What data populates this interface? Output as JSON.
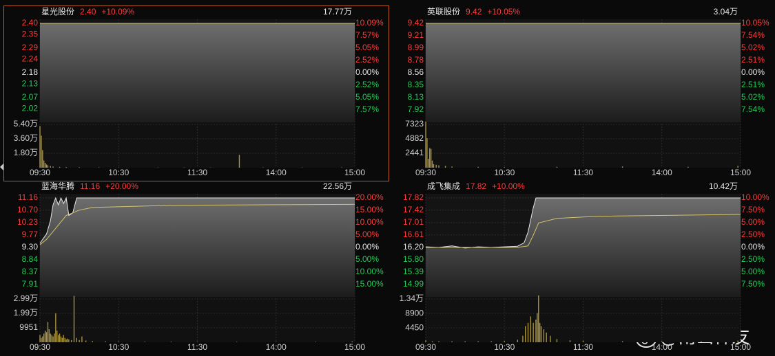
{
  "colors": {
    "up": "#ff3b3b",
    "down": "#22cc55",
    "flat": "#e6e6e6",
    "name": "#e6e6e6",
    "price_line": "#e8e8e8",
    "avg_line": "#d6c46a",
    "volume": "#a8923a"
  },
  "watermark": "@南山禅友",
  "chart_data": [
    {
      "type": "intraday",
      "name": "星光股份",
      "price_text": "2.40",
      "change_text": "+10.09%",
      "total_volume_text": "17.77万",
      "xlim": [
        0,
        240
      ],
      "xticks": [
        {
          "value": 0,
          "label": "09:30"
        },
        {
          "value": 60,
          "label": "10:30"
        },
        {
          "value": 120,
          "label": "11:30"
        },
        {
          "value": 180,
          "label": "14:00"
        },
        {
          "value": 240,
          "label": "15:00"
        }
      ],
      "ylim": [
        1.96,
        2.4
      ],
      "yticks": [
        {
          "value": 2.4,
          "label": "2.40"
        },
        2.35,
        2.29,
        2.24,
        2.18,
        2.13,
        2.07,
        2.02
      ],
      "y2lim": [
        -10.09,
        10.09
      ],
      "y2ticks": [
        {
          "value": 10.09,
          "label": "10.09%"
        },
        {
          "value": 7.57,
          "label": "7.57%"
        },
        {
          "value": 5.05,
          "label": "5.05%"
        },
        {
          "value": 2.52,
          "label": "2.52%"
        },
        {
          "value": 0,
          "label": "0.00%"
        },
        {
          "value": -2.52,
          "label": "2.52%"
        },
        {
          "value": -5.05,
          "label": "5.05%"
        },
        {
          "value": -7.57,
          "label": "7.57%"
        }
      ],
      "vlim": [
        0,
        54000
      ],
      "vticks": [
        {
          "value": 54000,
          "label": "5.40万"
        },
        {
          "value": 36000,
          "label": "3.60万"
        },
        {
          "value": 18000,
          "label": "1.80万"
        }
      ],
      "price": {
        "x": [
          0,
          240
        ],
        "values": [
          2.4,
          2.4
        ]
      },
      "avg": {
        "x": [
          0,
          240
        ],
        "values": [
          2.4,
          2.4
        ]
      },
      "volume": {
        "x": [
          0,
          1,
          2,
          3,
          4,
          5,
          6,
          8,
          10,
          15,
          20,
          30,
          45,
          60,
          90,
          110,
          130,
          152,
          170,
          200,
          230
        ],
        "values": [
          52000,
          40000,
          22000,
          9000,
          6000,
          4000,
          3000,
          2000,
          1500,
          1000,
          800,
          600,
          500,
          400,
          300,
          300,
          300,
          16000,
          400,
          300,
          500
        ]
      }
    },
    {
      "type": "intraday",
      "name": "英联股份",
      "price_text": "9.42",
      "change_text": "+10.05%",
      "total_volume_text": "3.04万",
      "xlim": [
        0,
        240
      ],
      "xticks": [
        {
          "value": 0,
          "label": "09:30"
        },
        {
          "value": 60,
          "label": "10:30"
        },
        {
          "value": 120,
          "label": "11:30"
        },
        {
          "value": 180,
          "label": "14:00"
        },
        {
          "value": 240,
          "label": "15:00"
        }
      ],
      "ylim": [
        7.7,
        9.42
      ],
      "yticks": [
        9.42,
        9.21,
        8.99,
        8.78,
        8.56,
        8.35,
        8.13,
        7.92
      ],
      "y2lim": [
        -10.05,
        10.05
      ],
      "y2ticks": [
        {
          "value": 10.05,
          "label": "10.05%"
        },
        {
          "value": 7.54,
          "label": "7.54%"
        },
        {
          "value": 5.02,
          "label": "5.02%"
        },
        {
          "value": 2.51,
          "label": "2.51%"
        },
        {
          "value": 0,
          "label": "0.00%"
        },
        {
          "value": -2.51,
          "label": "2.51%"
        },
        {
          "value": -5.02,
          "label": "5.02%"
        },
        {
          "value": -7.54,
          "label": "7.54%"
        }
      ],
      "vlim": [
        0,
        7323
      ],
      "vticks": [
        7323,
        4882,
        2441
      ],
      "price": {
        "x": [
          0,
          240
        ],
        "values": [
          9.42,
          9.42
        ]
      },
      "avg": {
        "x": [
          0,
          240
        ],
        "values": [
          9.42,
          9.42
        ]
      },
      "volume": {
        "x": [
          0,
          1,
          2,
          3,
          4,
          5,
          6,
          8,
          10,
          15,
          20,
          40,
          60,
          100,
          150,
          200,
          238
        ],
        "values": [
          7800,
          5000,
          1500,
          3300,
          3200,
          1200,
          600,
          500,
          400,
          300,
          200,
          150,
          100,
          150,
          200,
          150,
          300
        ]
      }
    },
    {
      "type": "intraday",
      "name": "蓝海华腾",
      "price_text": "11.16",
      "change_text": "+20.00%",
      "total_volume_text": "22.56万",
      "xlim": [
        0,
        240
      ],
      "xticks": [
        {
          "value": 0,
          "label": "09:30"
        },
        {
          "value": 60,
          "label": "10:30"
        },
        {
          "value": 120,
          "label": "11:30"
        },
        {
          "value": 180,
          "label": "14:00"
        },
        {
          "value": 240,
          "label": "15:00"
        }
      ],
      "ylim": [
        7.44,
        11.16
      ],
      "yticks": [
        11.16,
        {
          "value": 10.7,
          "label": "10.70"
        },
        10.23,
        9.77,
        {
          "value": 9.3,
          "label": "9.30"
        },
        8.84,
        8.37,
        7.91
      ],
      "y2lim": [
        -20,
        20
      ],
      "y2ticks": [
        {
          "value": 20,
          "label": "20.00%"
        },
        {
          "value": 15,
          "label": "15.00%"
        },
        {
          "value": 10,
          "label": "10.00%"
        },
        {
          "value": 5,
          "label": "5.00%"
        },
        {
          "value": 0,
          "label": "0.00%"
        },
        {
          "value": -5,
          "label": "5.00%"
        },
        {
          "value": -10,
          "label": "10.00%"
        },
        {
          "value": -15,
          "label": "15.00%"
        }
      ],
      "vlim": [
        0,
        29900
      ],
      "vticks": [
        {
          "value": 29900,
          "label": "2.99万"
        },
        {
          "value": 19900,
          "label": "1.99万"
        },
        9951
      ],
      "price": {
        "x": [
          0,
          2,
          5,
          8,
          10,
          12,
          14,
          16,
          18,
          20,
          22,
          25,
          28,
          240
        ],
        "values": [
          9.45,
          9.6,
          9.8,
          10.3,
          10.9,
          11.16,
          10.9,
          11.16,
          10.95,
          11.16,
          10.5,
          10.6,
          11.16,
          11.16
        ]
      },
      "avg": {
        "x": [
          0,
          5,
          15,
          20,
          30,
          40,
          100,
          240
        ],
        "values": [
          9.4,
          9.6,
          10.2,
          10.5,
          10.7,
          10.8,
          10.88,
          10.92
        ]
      },
      "volume": {
        "x": [
          0,
          1,
          2,
          3,
          4,
          5,
          6,
          7,
          8,
          9,
          10,
          11,
          12,
          13,
          14,
          15,
          16,
          17,
          18,
          19,
          20,
          21,
          22,
          24,
          26,
          28,
          30,
          32,
          35,
          40,
          50,
          60,
          80,
          100,
          120,
          150,
          180,
          210,
          238
        ],
        "values": [
          5000,
          3000,
          4000,
          6000,
          8000,
          7000,
          14000,
          9000,
          6000,
          5000,
          4000,
          6000,
          20000,
          8000,
          5000,
          6000,
          4000,
          3000,
          5000,
          3000,
          2000,
          2500,
          2000,
          1500,
          32000,
          3000,
          1500,
          4000,
          1200,
          800,
          600,
          500,
          400,
          400,
          300,
          300,
          300,
          300,
          600
        ]
      }
    },
    {
      "type": "intraday",
      "name": "成飞集成",
      "price_text": "17.82",
      "change_text": "+10.00%",
      "total_volume_text": "10.42万",
      "xlim": [
        0,
        240
      ],
      "xticks": [
        {
          "value": 0,
          "label": "09:30"
        },
        {
          "value": 60,
          "label": "10:30"
        },
        {
          "value": 120,
          "label": "11:30"
        },
        {
          "value": 180,
          "label": "14:00"
        },
        {
          "value": 240,
          "label": "15:00"
        }
      ],
      "ylim": [
        14.58,
        17.82
      ],
      "yticks": [
        17.82,
        17.42,
        17.01,
        16.61,
        {
          "value": 16.2,
          "label": "16.20"
        },
        {
          "value": 15.8,
          "label": "15.80"
        },
        15.39,
        14.99
      ],
      "y2lim": [
        -10,
        10
      ],
      "y2ticks": [
        {
          "value": 10,
          "label": "10.00%"
        },
        {
          "value": 7.5,
          "label": "7.50%"
        },
        {
          "value": 5,
          "label": "5.00%"
        },
        {
          "value": 2.5,
          "label": "2.50%"
        },
        {
          "value": 0,
          "label": "0.00%"
        },
        {
          "value": -2.5,
          "label": "2.50%"
        },
        {
          "value": -5,
          "label": "5.00%"
        },
        {
          "value": -7.5,
          "label": "7.50%"
        }
      ],
      "vlim": [
        0,
        13400
      ],
      "vticks": [
        {
          "value": 13400,
          "label": "1.34万"
        },
        8900,
        4450
      ],
      "price": {
        "x": [
          0,
          10,
          20,
          30,
          40,
          50,
          60,
          70,
          75,
          78,
          80,
          82,
          84,
          86,
          240
        ],
        "values": [
          16.22,
          16.2,
          16.25,
          16.18,
          16.22,
          16.2,
          16.22,
          16.24,
          16.35,
          16.7,
          17.1,
          17.5,
          17.82,
          17.82,
          17.82
        ]
      },
      "avg": {
        "x": [
          0,
          70,
          78,
          82,
          86,
          100,
          130,
          240
        ],
        "values": [
          16.2,
          16.2,
          16.25,
          16.6,
          17,
          17.15,
          17.22,
          17.28
        ]
      },
      "volume": {
        "x": [
          0,
          5,
          10,
          20,
          30,
          40,
          50,
          60,
          70,
          74,
          76,
          78,
          80,
          82,
          84,
          85,
          86,
          87,
          88,
          90,
          92,
          95,
          100,
          110,
          120,
          150,
          180,
          210,
          238
        ],
        "values": [
          600,
          300,
          300,
          300,
          300,
          300,
          300,
          400,
          800,
          2000,
          5000,
          6000,
          8000,
          6000,
          7000,
          9000,
          14500,
          6000,
          5000,
          4000,
          3000,
          2000,
          1000,
          600,
          500,
          300,
          300,
          300,
          500
        ]
      }
    }
  ]
}
